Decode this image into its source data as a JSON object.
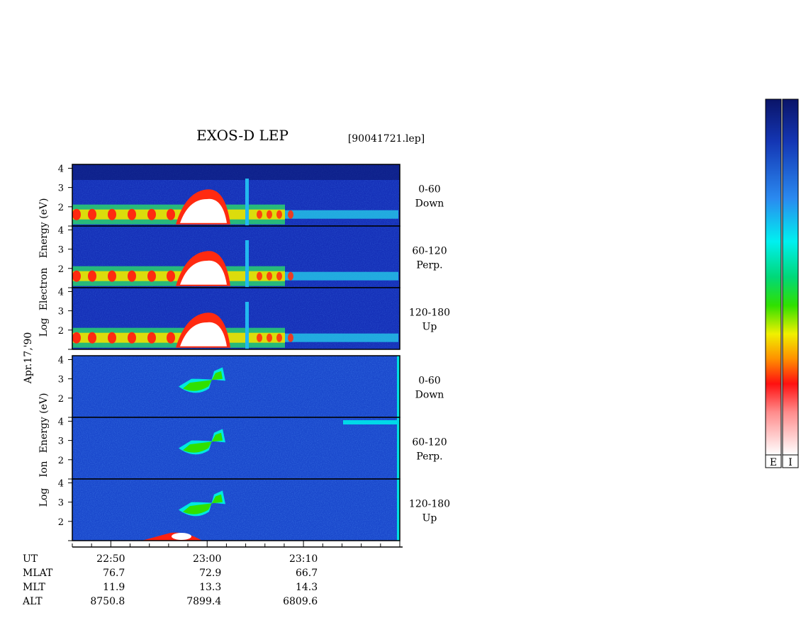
{
  "title": "EXOS-D LEP",
  "file_label": "[90041721.lep]",
  "date_label": "Apr.17,'90",
  "chart_data": {
    "type": "heatmap",
    "panel_groups": [
      {
        "species": "Electron",
        "ylabel": "Log Electron Energy (eV)",
        "ylabel_words": [
          "Log",
          "Electron",
          "Energy (eV)"
        ],
        "panels": [
          {
            "pitch_angle": "0-60",
            "direction": "Down",
            "yticks": [
              "4",
              "3",
              "2"
            ]
          },
          {
            "pitch_angle": "60-120",
            "direction": "Perp.",
            "yticks": [
              "4",
              "3",
              "2"
            ]
          },
          {
            "pitch_angle": "120-180",
            "direction": "Up",
            "yticks": [
              "4",
              "3",
              "2"
            ]
          }
        ]
      },
      {
        "species": "Ion",
        "ylabel": "Log Ion Energy (eV)",
        "ylabel_words": [
          "Log",
          "Ion",
          "Energy (eV)"
        ],
        "panels": [
          {
            "pitch_angle": "0-60",
            "direction": "Down",
            "yticks": [
              "4",
              "3",
              "2"
            ]
          },
          {
            "pitch_angle": "60-120",
            "direction": "Perp.",
            "yticks": [
              "4",
              "3",
              "2"
            ]
          },
          {
            "pitch_angle": "120-180",
            "direction": "Up",
            "yticks": [
              "4",
              "3",
              "2"
            ]
          }
        ]
      }
    ],
    "y_range_log_eV": [
      1,
      4.2
    ],
    "x_range_ut": [
      "22:46",
      "23:20"
    ],
    "ephemeris": {
      "row_labels": [
        "UT",
        "MLAT",
        "MLT",
        "ALT"
      ],
      "columns": [
        {
          "UT": "22:50",
          "MLAT": "76.7",
          "MLT": "11.9",
          "ALT": "8750.8"
        },
        {
          "UT": "23:00",
          "MLAT": "72.9",
          "MLT": "13.3",
          "ALT": "7899.4"
        },
        {
          "UT": "23:10",
          "MLAT": "66.7",
          "MLT": "14.3",
          "ALT": "6809.6"
        }
      ]
    },
    "colorbars": [
      {
        "label": "E",
        "species": "Electron"
      },
      {
        "label": "I",
        "species": "Ion"
      }
    ],
    "colormap": [
      "#0a1468",
      "#1638c0",
      "#1c8cf0",
      "#00e8f0",
      "#00d870",
      "#20e000",
      "#f0f000",
      "#ff8800",
      "#ff1010",
      "#ffc8c8",
      "#ffffff"
    ]
  }
}
